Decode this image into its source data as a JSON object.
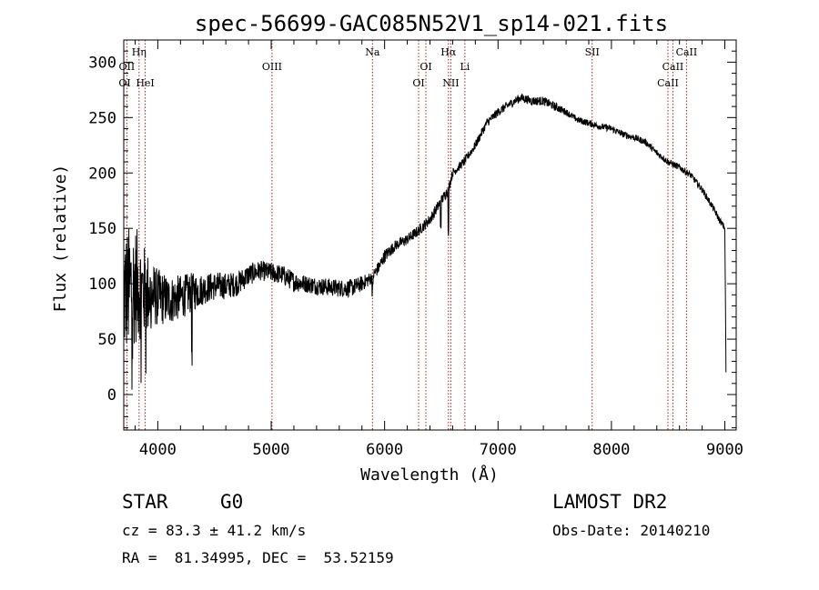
{
  "chart_data": {
    "type": "line",
    "title": "spec-56699-GAC085N52V1_sp14-021.fits",
    "xlabel": "Wavelength (Å)",
    "ylabel": "Flux (relative)",
    "xlim": [
      3700,
      9100
    ],
    "ylim": [
      -32,
      320
    ],
    "xticks": [
      4000,
      5000,
      6000,
      7000,
      8000,
      9000
    ],
    "yticks": [
      0,
      50,
      100,
      150,
      200,
      250,
      300
    ],
    "grid": false,
    "series": [
      {
        "x": [
          3700,
          3750,
          3800,
          3850,
          3900,
          3950,
          4000,
          4100,
          4200,
          4300,
          4400,
          4500,
          4600,
          4700,
          4800,
          4900,
          5000,
          5100,
          5200,
          5300,
          5400,
          5500,
          5600,
          5700,
          5800,
          5880,
          5950,
          6000,
          6100,
          6200,
          6300,
          6400,
          6500,
          6560,
          6600,
          6700,
          6800,
          6900,
          7000,
          7100,
          7200,
          7300,
          7400,
          7500,
          7600,
          7700,
          7800,
          7900,
          8000,
          8100,
          8200,
          8300,
          8400,
          8500,
          8600,
          8700,
          8800,
          8900,
          8950,
          9000,
          9010
        ],
        "y": [
          90,
          95,
          100,
          95,
          92,
          90,
          88,
          85,
          88,
          92,
          95,
          98,
          98,
          100,
          108,
          112,
          110,
          108,
          102,
          100,
          98,
          97,
          96,
          96,
          100,
          105,
          115,
          125,
          135,
          140,
          148,
          158,
          175,
          185,
          200,
          210,
          225,
          245,
          255,
          262,
          268,
          265,
          265,
          260,
          255,
          248,
          245,
          242,
          240,
          235,
          232,
          228,
          218,
          210,
          205,
          198,
          185,
          168,
          158,
          150,
          20
        ],
        "noise": [
          60,
          58,
          55,
          45,
          40,
          30,
          26,
          22,
          20,
          18,
          14,
          13,
          12,
          11,
          10,
          9,
          9,
          9,
          9,
          8,
          8,
          8,
          8,
          8,
          7,
          6,
          6,
          6,
          5,
          5,
          5,
          5,
          5,
          5,
          4,
          4,
          4,
          4,
          4,
          4,
          4,
          4,
          4,
          4,
          3,
          3,
          3,
          3,
          3,
          3,
          3,
          3,
          3,
          3,
          3,
          3,
          3,
          3,
          3,
          3,
          0
        ]
      }
    ],
    "spectral_lines": [
      {
        "label": "Hη",
        "wavelength": 3835,
        "row": 1
      },
      {
        "label": "OII",
        "wavelength": 3727,
        "row": 2
      },
      {
        "label": "OI",
        "wavelength": 3700,
        "row": 3
      },
      {
        "label": "HeI",
        "wavelength": 3889,
        "row": 3
      },
      {
        "label": "OIII",
        "wavelength": 5007,
        "row": 2
      },
      {
        "label": "Na",
        "wavelength": 5893,
        "row": 1
      },
      {
        "label": "OI",
        "wavelength": 6364,
        "row": 2
      },
      {
        "label": "OI",
        "wavelength": 6300,
        "row": 3
      },
      {
        "label": "Hα",
        "wavelength": 6563,
        "row": 1
      },
      {
        "label": "NII",
        "wavelength": 6584,
        "row": 3
      },
      {
        "label": "Li",
        "wavelength": 6708,
        "row": 2
      },
      {
        "label": "SII",
        "wavelength": 7830,
        "row": 1
      },
      {
        "label": "CaII",
        "wavelength": 8662,
        "row": 1
      },
      {
        "label": "CaII",
        "wavelength": 8542,
        "row": 2
      },
      {
        "label": "CaII",
        "wavelength": 8498,
        "row": 3
      }
    ]
  },
  "info": {
    "class": "STAR",
    "subclass": "G0",
    "survey": "LAMOST DR2",
    "cz": "cz = 83.3 ± 41.2 km/s",
    "obs_date": "Obs-Date: 20140210",
    "coords": "RA =  81.34995, DEC =  53.52159"
  },
  "colors": {
    "line": "#000000",
    "marker_line": "#aa2222"
  }
}
